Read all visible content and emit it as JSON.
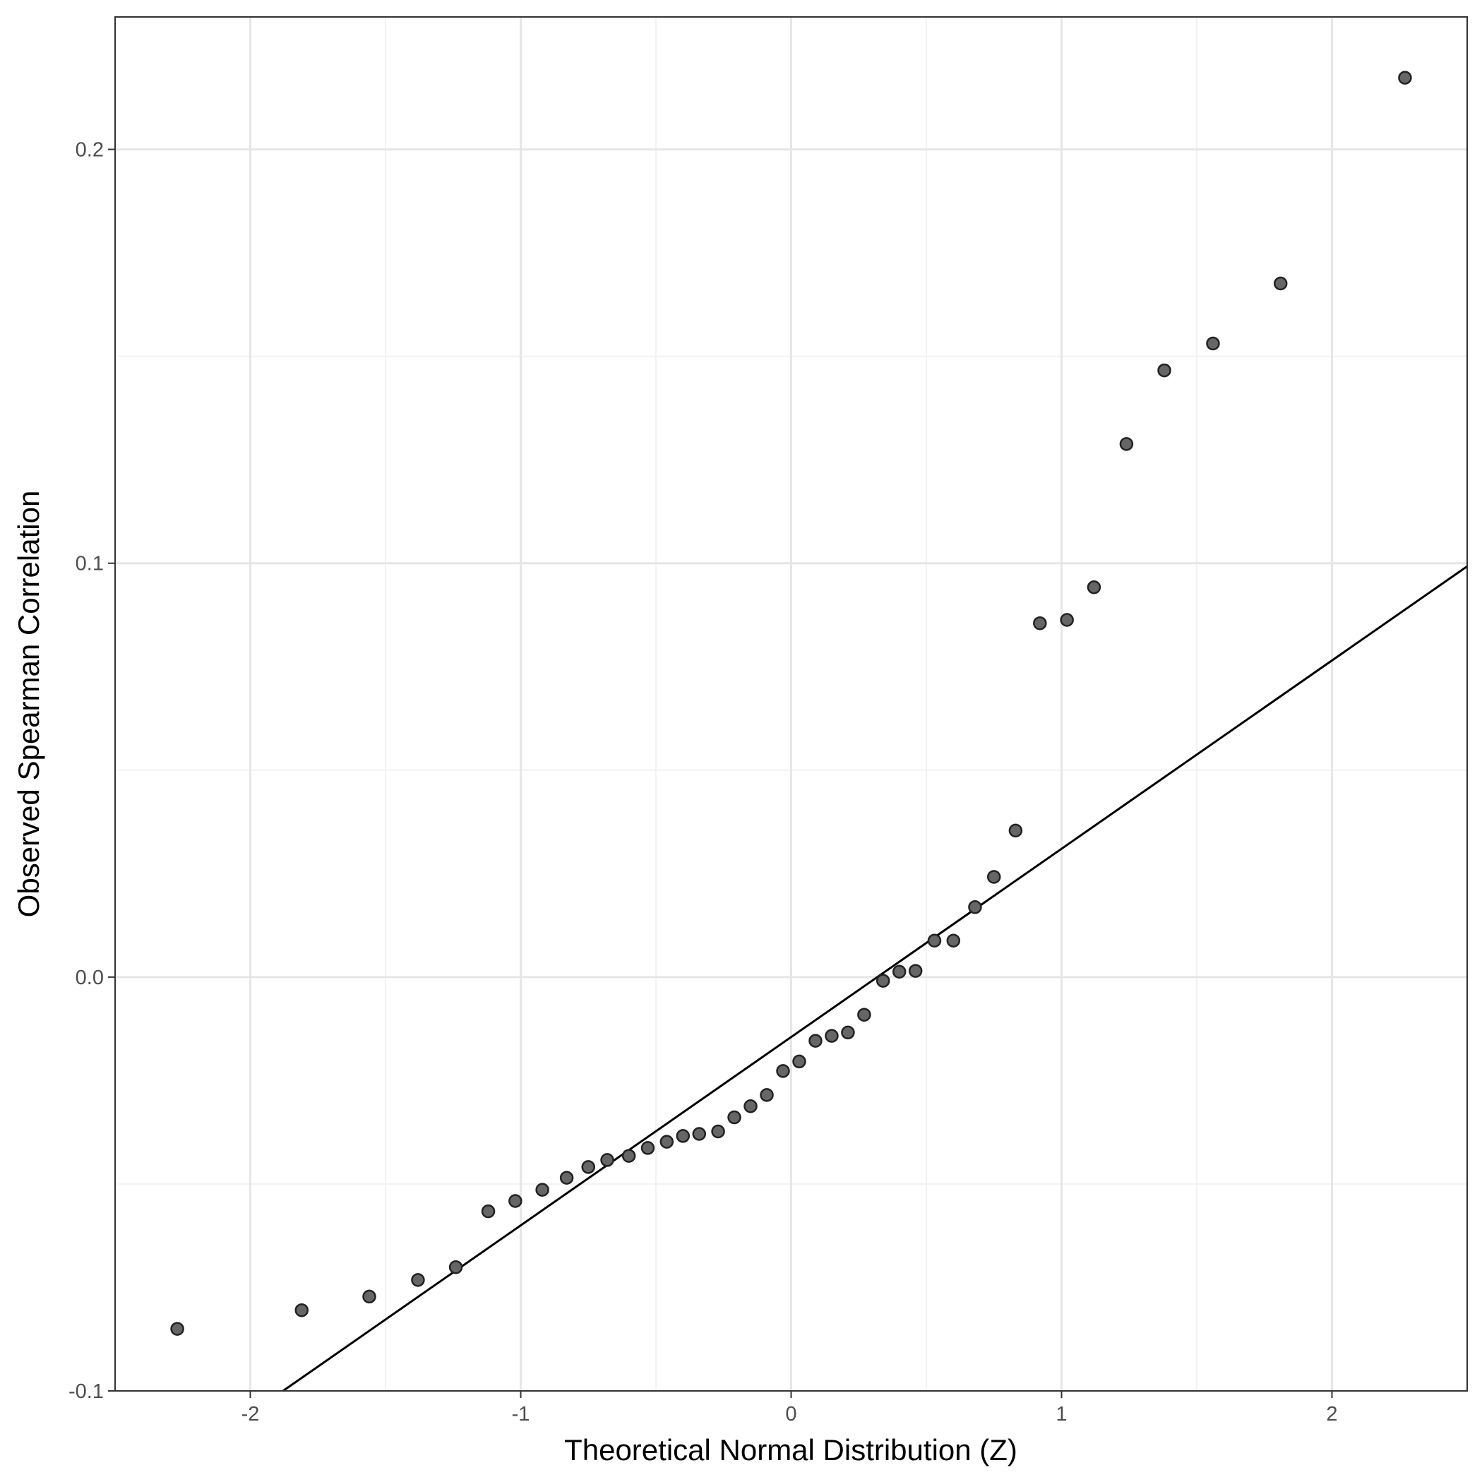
{
  "chart_data": {
    "type": "scatter",
    "title": "",
    "xlabel": "Theoretical Normal Distribution (Z)",
    "ylabel": "Observed Spearman Correlation",
    "xlim": [
      -2.5,
      2.5
    ],
    "ylim": [
      -0.1,
      0.232
    ],
    "xticks": [
      -2,
      -1,
      0,
      1,
      2
    ],
    "xtick_labels": [
      "-2",
      "-1",
      "0",
      "1",
      "2"
    ],
    "yticks": [
      -0.1,
      0.0,
      0.1,
      0.2
    ],
    "ytick_labels": [
      "-0.1",
      "0.0",
      "0.1",
      "0.2"
    ],
    "grid": true,
    "x": [
      -2.27,
      -1.81,
      -1.56,
      -1.38,
      -1.24,
      -1.12,
      -1.02,
      -0.92,
      -0.83,
      -0.75,
      -0.68,
      -0.6,
      -0.53,
      -0.46,
      -0.4,
      -0.34,
      -0.27,
      -0.21,
      -0.15,
      -0.09,
      -0.03,
      0.03,
      0.09,
      0.15,
      0.21,
      0.27,
      0.34,
      0.4,
      0.46,
      0.53,
      0.6,
      0.68,
      0.75,
      0.83,
      0.92,
      1.02,
      1.12,
      1.24,
      1.38,
      1.56,
      1.81,
      2.27
    ],
    "y": [
      -0.085,
      -0.0805,
      -0.0772,
      -0.0732,
      -0.0701,
      -0.0566,
      -0.0541,
      -0.0514,
      -0.0485,
      -0.0459,
      -0.0442,
      -0.0432,
      -0.0413,
      -0.0398,
      -0.0384,
      -0.0379,
      -0.0373,
      -0.0339,
      -0.0312,
      -0.0285,
      -0.0227,
      -0.0204,
      -0.0154,
      -0.0142,
      -0.0134,
      -0.0091,
      -0.0009,
      0.0013,
      0.0015,
      0.0088,
      0.0088,
      0.0169,
      0.0242,
      0.0354,
      0.0855,
      0.0863,
      0.0942,
      0.1288,
      0.1466,
      0.1531,
      0.1676,
      0.2173
    ],
    "reference_line": {
      "slope": 0.0455,
      "intercept": -0.0145
    },
    "colors": {
      "point_fill": "#666666",
      "point_stroke": "#222222",
      "line": "#000000",
      "grid_major": "#e6e6e6",
      "grid_minor": "#f2f2f2",
      "border": "#333333"
    }
  }
}
